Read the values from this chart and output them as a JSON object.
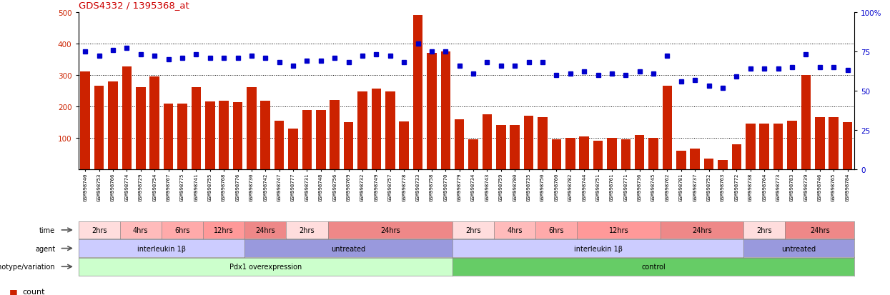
{
  "title": "GDS4332 / 1395368_at",
  "title_color": "#cc0000",
  "sample_ids": [
    "GSM998740",
    "GSM998753",
    "GSM998766",
    "GSM998774",
    "GSM998729",
    "GSM998754",
    "GSM998767",
    "GSM998775",
    "GSM998741",
    "GSM998755",
    "GSM998768",
    "GSM998776",
    "GSM998730",
    "GSM998742",
    "GSM998747",
    "GSM998777",
    "GSM998731",
    "GSM998748",
    "GSM998756",
    "GSM998769",
    "GSM998732",
    "GSM998749",
    "GSM998757",
    "GSM998778",
    "GSM998733",
    "GSM998758",
    "GSM998770",
    "GSM998779",
    "GSM998734",
    "GSM998743",
    "GSM998759",
    "GSM998780",
    "GSM998735",
    "GSM998750",
    "GSM998760",
    "GSM998782",
    "GSM998744",
    "GSM998751",
    "GSM998761",
    "GSM998771",
    "GSM998736",
    "GSM998745",
    "GSM998762",
    "GSM998781",
    "GSM998737",
    "GSM998752",
    "GSM998763",
    "GSM998772",
    "GSM998738",
    "GSM998764",
    "GSM998773",
    "GSM998783",
    "GSM998739",
    "GSM998746",
    "GSM998765",
    "GSM998784"
  ],
  "counts": [
    310,
    265,
    280,
    328,
    262,
    295,
    209,
    209,
    262,
    216,
    218,
    213,
    262,
    219,
    155,
    130,
    188,
    188,
    220,
    150,
    248,
    256,
    248,
    153,
    490,
    370,
    375,
    160,
    95,
    175,
    140,
    140,
    170,
    165,
    95,
    100,
    105,
    90,
    100,
    95,
    110,
    100,
    265,
    60,
    65,
    35,
    30,
    80,
    145,
    145,
    145,
    155,
    300,
    165,
    165,
    150
  ],
  "percentiles": [
    75,
    72,
    76,
    77,
    73,
    72,
    70,
    71,
    73,
    71,
    71,
    71,
    72,
    71,
    68,
    66,
    69,
    69,
    71,
    68,
    72,
    73,
    72,
    68,
    80,
    75,
    75,
    66,
    61,
    68,
    66,
    66,
    68,
    68,
    60,
    61,
    62,
    60,
    61,
    60,
    62,
    61,
    72,
    56,
    57,
    53,
    52,
    59,
    64,
    64,
    64,
    65,
    73,
    65,
    65,
    63
  ],
  "ylim_left": [
    0,
    500
  ],
  "ylim_right": [
    0,
    100
  ],
  "yticks_left": [
    100,
    200,
    300,
    400,
    500
  ],
  "yticks_right": [
    0,
    25,
    50,
    75,
    100
  ],
  "bar_color": "#cc2200",
  "dot_color": "#0000cc",
  "gridline_values": [
    100,
    200,
    300,
    400
  ],
  "genotype_groups": [
    {
      "label": "Pdx1 overexpression",
      "start": 0,
      "end": 27,
      "color": "#ccffcc"
    },
    {
      "label": "control",
      "start": 27,
      "end": 56,
      "color": "#66cc66"
    }
  ],
  "agent_groups": [
    {
      "label": "interleukin 1β",
      "start": 0,
      "end": 12,
      "color": "#ccccff"
    },
    {
      "label": "untreated",
      "start": 12,
      "end": 27,
      "color": "#9999dd"
    },
    {
      "label": "interleukin 1β",
      "start": 27,
      "end": 48,
      "color": "#ccccff"
    },
    {
      "label": "untreated",
      "start": 48,
      "end": 56,
      "color": "#9999dd"
    }
  ],
  "time_groups": [
    {
      "label": "2hrs",
      "start": 0,
      "end": 3,
      "color": "#ffdddd"
    },
    {
      "label": "4hrs",
      "start": 3,
      "end": 6,
      "color": "#ffbbbb"
    },
    {
      "label": "6hrs",
      "start": 6,
      "end": 9,
      "color": "#ffaaaa"
    },
    {
      "label": "12hrs",
      "start": 9,
      "end": 12,
      "color": "#ff9999"
    },
    {
      "label": "24hrs",
      "start": 12,
      "end": 15,
      "color": "#ee8888"
    },
    {
      "label": "2hrs",
      "start": 15,
      "end": 18,
      "color": "#ffdddd"
    },
    {
      "label": "24hrs",
      "start": 18,
      "end": 27,
      "color": "#ee8888"
    },
    {
      "label": "2hrs",
      "start": 27,
      "end": 30,
      "color": "#ffdddd"
    },
    {
      "label": "4hrs",
      "start": 30,
      "end": 33,
      "color": "#ffbbbb"
    },
    {
      "label": "6hrs",
      "start": 33,
      "end": 36,
      "color": "#ffaaaa"
    },
    {
      "label": "12hrs",
      "start": 36,
      "end": 42,
      "color": "#ff9999"
    },
    {
      "label": "24hrs",
      "start": 42,
      "end": 48,
      "color": "#ee8888"
    },
    {
      "label": "2hrs",
      "start": 48,
      "end": 51,
      "color": "#ffdddd"
    },
    {
      "label": "24hrs",
      "start": 51,
      "end": 56,
      "color": "#ee8888"
    }
  ],
  "row_labels": [
    "genotype/variation",
    "agent",
    "time"
  ],
  "bg_color": "#ffffff",
  "chart_bg": "#ffffff",
  "border_color": "#000000"
}
